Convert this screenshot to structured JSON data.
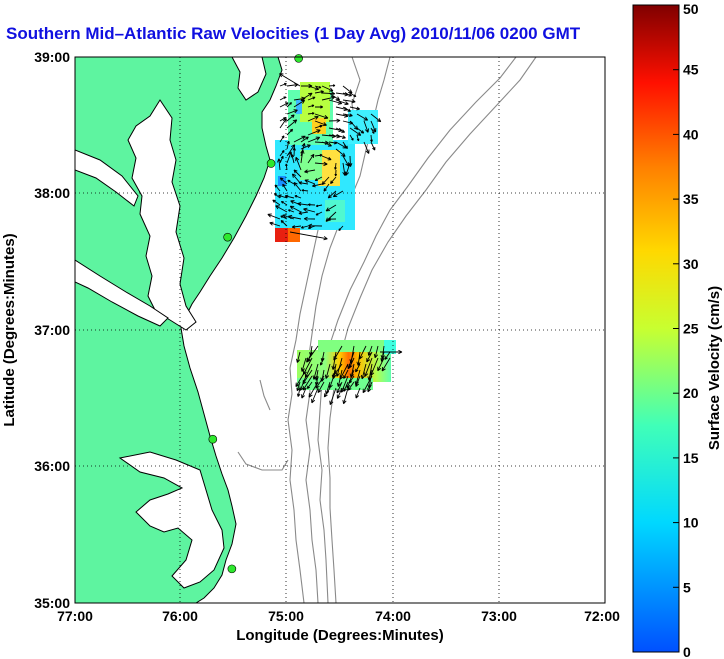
{
  "title": "Southern Mid–Atlantic Raw Velocities (1 Day Avg) 2010/11/06 0200 GMT",
  "colors": {
    "land": "#5ef4a0",
    "coast": "#000000",
    "bathymetry": "#8a8a8a",
    "title": "#1010e0",
    "station": "#2ee82e"
  },
  "map": {
    "xlabel": "Longitude (Degrees:Minutes)",
    "ylabel": "Latitude (Degrees:Minutes)",
    "x_ticks": [
      "77:00",
      "76:00",
      "75:00",
      "74:00",
      "73:00",
      "72:00"
    ],
    "y_ticks": [
      "39:00",
      "38:00",
      "37:00",
      "36:00",
      "35:00"
    ],
    "lon_range": [
      -77,
      -72
    ],
    "lat_range": [
      35,
      39
    ],
    "grid": "dotted",
    "stations": [
      {
        "lon": -74.89,
        "lat": 38.99
      },
      {
        "lon": -75.15,
        "lat": 38.22
      },
      {
        "lon": -75.56,
        "lat": 37.68
      },
      {
        "lon": -75.7,
        "lat": 36.2
      },
      {
        "lon": -75.52,
        "lat": 35.25
      }
    ]
  },
  "colorbar": {
    "label": "Surface Velocity (cm/s)",
    "min": 0,
    "max": 50,
    "ticks": [
      "0",
      "5",
      "10",
      "15",
      "20",
      "25",
      "30",
      "35",
      "40",
      "45",
      "50"
    ]
  }
}
